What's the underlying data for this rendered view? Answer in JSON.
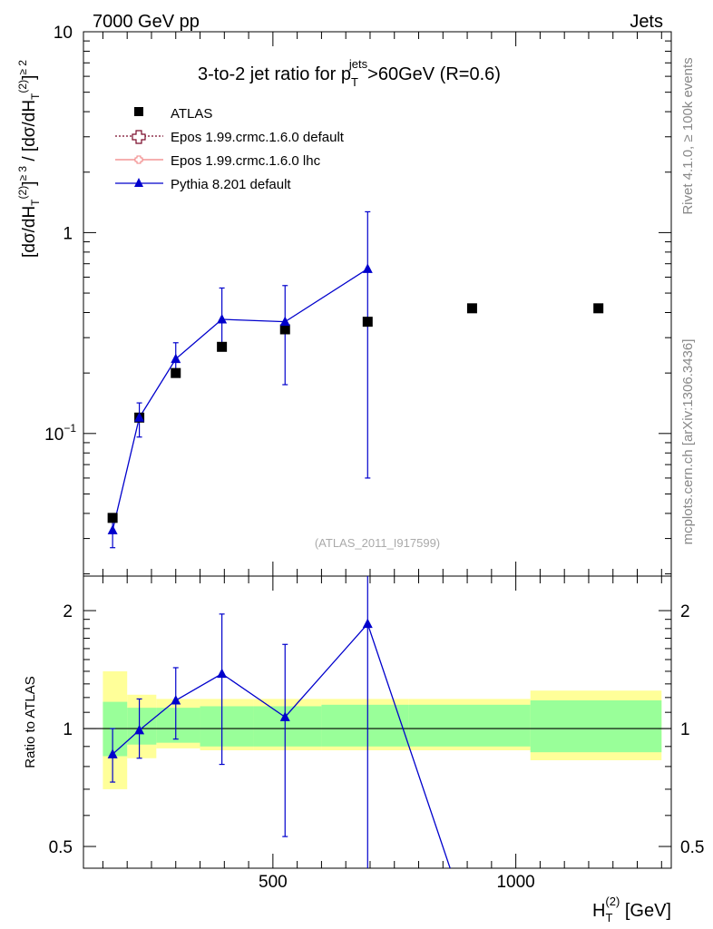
{
  "header": {
    "left": "7000 GeV pp",
    "right": "Jets"
  },
  "side_labels": {
    "rivet": "Rivet 4.1.0, ≥ 100k events",
    "mcplots": "mcplots.cern.ch [arXiv:1306.3436]"
  },
  "title": {
    "prefix": "3-to-2 jet ratio for p",
    "sup": "jets",
    "sub": "T",
    "suffix": ">60GeV (R=0.6)"
  },
  "analysis_id": "(ATLAS_2011_I917599)",
  "legend": [
    {
      "label": "ATLAS",
      "color": "#000000",
      "marker": "square"
    },
    {
      "label": "Epos 1.99.crmc.1.6.0 default",
      "color": "#7a0a2a",
      "marker": "cross"
    },
    {
      "label": "Epos 1.99.crmc.1.6.0 lhc",
      "color": "#f08080",
      "marker": "cross-small"
    },
    {
      "label": "Pythia 8.201 default",
      "color": "#0000cc",
      "marker": "triangle"
    }
  ],
  "ylabel_main": {
    "t1": "[dσ/dH",
    "s1": "T",
    "p1": "(2)",
    "q1": "≥ 3",
    "t2": "]",
    "t3": " / [dσ/dH",
    "s2": "T",
    "p2": "(2)",
    "q2": "≥ 2",
    "t4": "]"
  },
  "ylabel_ratio": "Ratio to ATLAS",
  "xlabel": {
    "main": "H",
    "sub": "T",
    "sup": "(2)",
    "unit": " [GeV]"
  },
  "colors": {
    "atlas": "#000000",
    "pythia": "#0000cc",
    "band_green": "#99ff99",
    "band_yellow": "#ffff99"
  },
  "chart_data": [
    {
      "type": "scatter",
      "panel": "main",
      "yscale": "log",
      "xlim": [
        110,
        1320
      ],
      "ylim": [
        0.0195,
        10
      ],
      "x_ticks": [
        500,
        1000
      ],
      "y_ticks": [
        {
          "value": 0.1,
          "base": "10",
          "exp": "−1"
        },
        {
          "value": 1,
          "base": "1",
          "exp": ""
        },
        {
          "value": 10,
          "base": "10",
          "exp": ""
        }
      ],
      "series": [
        {
          "name": "ATLAS",
          "x": [
            170,
            225,
            300,
            395,
            525,
            695,
            910,
            1170
          ],
          "y": [
            0.038,
            0.12,
            0.2,
            0.27,
            0.33,
            0.36,
            0.42,
            0.42
          ],
          "y_err_low": [
            0.002,
            0.005,
            0.008,
            0.012,
            0.015,
            0.02,
            0.02,
            0.02
          ],
          "y_err_high": [
            0.002,
            0.005,
            0.008,
            0.012,
            0.015,
            0.02,
            0.02,
            0.02
          ]
        },
        {
          "name": "Pythia 8.201 default",
          "x": [
            170,
            225,
            300,
            395,
            525,
            695
          ],
          "y": [
            0.033,
            0.12,
            0.235,
            0.37,
            0.36,
            0.66
          ],
          "y_err_low": [
            0.006,
            0.024,
            0.035,
            0.1,
            0.185,
            0.6
          ],
          "y_err_high": [
            0.005,
            0.022,
            0.048,
            0.16,
            0.185,
            0.61
          ]
        }
      ]
    },
    {
      "type": "line",
      "panel": "ratio",
      "yscale": "log",
      "xlim": [
        110,
        1320
      ],
      "ylim": [
        0.44,
        2.45
      ],
      "y_ticks": [
        0.5,
        1,
        2
      ],
      "reference": 1,
      "bands": {
        "x_edges": [
          150,
          200,
          260,
          350,
          460,
          600,
          780,
          1030,
          1300
        ],
        "green_low": [
          0.85,
          0.91,
          0.92,
          0.9,
          0.9,
          0.9,
          0.9,
          0.87,
          0.84
        ],
        "green_high": [
          1.17,
          1.13,
          1.13,
          1.14,
          1.14,
          1.15,
          1.15,
          1.18,
          1.2
        ],
        "yellow_low": [
          0.7,
          0.84,
          0.89,
          0.88,
          0.88,
          0.88,
          0.88,
          0.83,
          0.65
        ],
        "yellow_high": [
          1.4,
          1.22,
          1.19,
          1.19,
          1.19,
          1.19,
          1.19,
          1.25,
          1.42
        ]
      },
      "series": [
        {
          "name": "Pythia 8.201 default",
          "x": [
            170,
            225,
            300,
            395,
            525,
            695,
            910
          ],
          "y": [
            0.86,
            0.99,
            1.18,
            1.38,
            1.07,
            1.85,
            0.3
          ],
          "y_err_low": [
            0.13,
            0.15,
            0.24,
            0.57,
            0.54,
            1.6,
            0
          ],
          "y_err_high": [
            0.14,
            0.2,
            0.25,
            0.58,
            0.57,
            0.8,
            0
          ]
        }
      ]
    }
  ]
}
